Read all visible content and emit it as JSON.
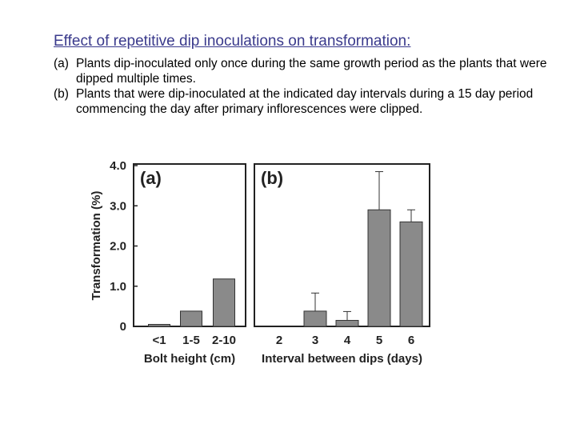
{
  "slide": {
    "title": "Effect of repetitive dip inoculations on transformation:",
    "captions": [
      {
        "tag": "(a)",
        "text": "Plants dip-inoculated only once during the same growth period as the plants that were dipped multiple times."
      },
      {
        "tag": "(b)",
        "text": "Plants that were dip-inoculated at the indicated day intervals during a 15 day period commencing the day after primary inflorescences were clipped."
      }
    ]
  },
  "colors": {
    "bar_fill": "#8a8a8a",
    "bar_stroke": "#333333",
    "axis": "#222222"
  },
  "chart_data": {
    "type": "bar",
    "ylabel": "Transformation (%)",
    "ylim": [
      0,
      4.0
    ],
    "yticks": [
      "0",
      "1.0",
      "2.0",
      "3.0",
      "4.0"
    ],
    "grid": false,
    "panels": [
      {
        "label": "(a)",
        "xlabel": "Bolt height (cm)",
        "categories": [
          "<1",
          "1-5",
          "2-10"
        ],
        "values": [
          0.05,
          0.38,
          1.18
        ],
        "errors": [
          0,
          0,
          0
        ]
      },
      {
        "label": "(b)",
        "xlabel": "Interval between dips (days)",
        "categories": [
          "2",
          "3",
          "4",
          "5",
          "6"
        ],
        "values": [
          0,
          0.38,
          0.15,
          2.9,
          2.6
        ],
        "errors": [
          0,
          0.45,
          0.22,
          0.95,
          0.3
        ]
      }
    ]
  }
}
